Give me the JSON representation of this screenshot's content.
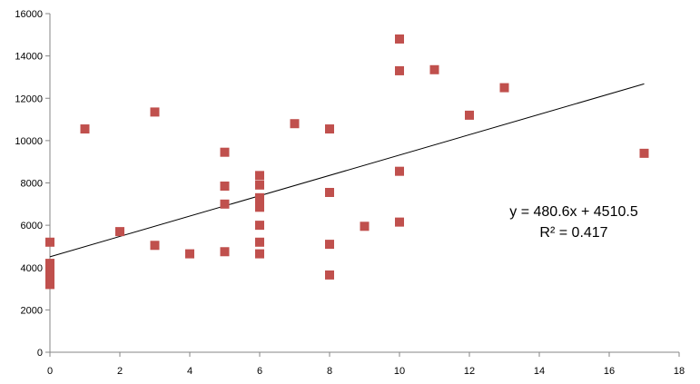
{
  "chart_data": {
    "type": "scatter",
    "title": "",
    "xlabel": "",
    "ylabel": "",
    "xlim": [
      0,
      18
    ],
    "ylim": [
      0,
      16000
    ],
    "x_ticks": [
      0,
      2,
      4,
      6,
      8,
      10,
      12,
      14,
      16,
      18
    ],
    "y_ticks": [
      0,
      2000,
      4000,
      6000,
      8000,
      10000,
      12000,
      14000,
      16000
    ],
    "x_tick_labels": [
      "0",
      "2",
      "4",
      "6",
      "8",
      "10",
      "12",
      "14",
      "16",
      "18"
    ],
    "y_tick_labels": [
      "0",
      "2000",
      "4000",
      "6000",
      "8000",
      "10000",
      "12000",
      "14000",
      "16000"
    ],
    "grid": false,
    "legend": "none",
    "marker": "square",
    "colors": {
      "marker": "#C0504D",
      "trendline": "#000000",
      "axis": "#868686"
    },
    "series": [
      {
        "points": [
          {
            "x": 0,
            "y": 5200
          },
          {
            "x": 0,
            "y": 4200
          },
          {
            "x": 0,
            "y": 4000
          },
          {
            "x": 0,
            "y": 3800
          },
          {
            "x": 0,
            "y": 3600
          },
          {
            "x": 0,
            "y": 3400
          },
          {
            "x": 0,
            "y": 3200
          },
          {
            "x": 1,
            "y": 10550
          },
          {
            "x": 2,
            "y": 5700
          },
          {
            "x": 3,
            "y": 11350
          },
          {
            "x": 3,
            "y": 5050
          },
          {
            "x": 4,
            "y": 4650
          },
          {
            "x": 5,
            "y": 9450
          },
          {
            "x": 5,
            "y": 7850
          },
          {
            "x": 5,
            "y": 7000
          },
          {
            "x": 5,
            "y": 4750
          },
          {
            "x": 6,
            "y": 8350
          },
          {
            "x": 6,
            "y": 7900
          },
          {
            "x": 6,
            "y": 7300
          },
          {
            "x": 6,
            "y": 7100
          },
          {
            "x": 6,
            "y": 6850
          },
          {
            "x": 6,
            "y": 6000
          },
          {
            "x": 6,
            "y": 5200
          },
          {
            "x": 6,
            "y": 4650
          },
          {
            "x": 7,
            "y": 10800
          },
          {
            "x": 8,
            "y": 10550
          },
          {
            "x": 8,
            "y": 7550
          },
          {
            "x": 8,
            "y": 5100
          },
          {
            "x": 8,
            "y": 3650
          },
          {
            "x": 9,
            "y": 5950
          },
          {
            "x": 10,
            "y": 14800
          },
          {
            "x": 10,
            "y": 13300
          },
          {
            "x": 10,
            "y": 8550
          },
          {
            "x": 10,
            "y": 6150
          },
          {
            "x": 11,
            "y": 13350
          },
          {
            "x": 12,
            "y": 11200
          },
          {
            "x": 13,
            "y": 12500
          },
          {
            "x": 17,
            "y": 9400
          }
        ]
      }
    ],
    "trendline": {
      "slope": 480.6,
      "intercept": 4510.5,
      "x_range": [
        0,
        17
      ]
    },
    "annotations": {
      "equation": "y = 480.6x + 4510.5",
      "r_squared": "R² = 0.417"
    }
  }
}
